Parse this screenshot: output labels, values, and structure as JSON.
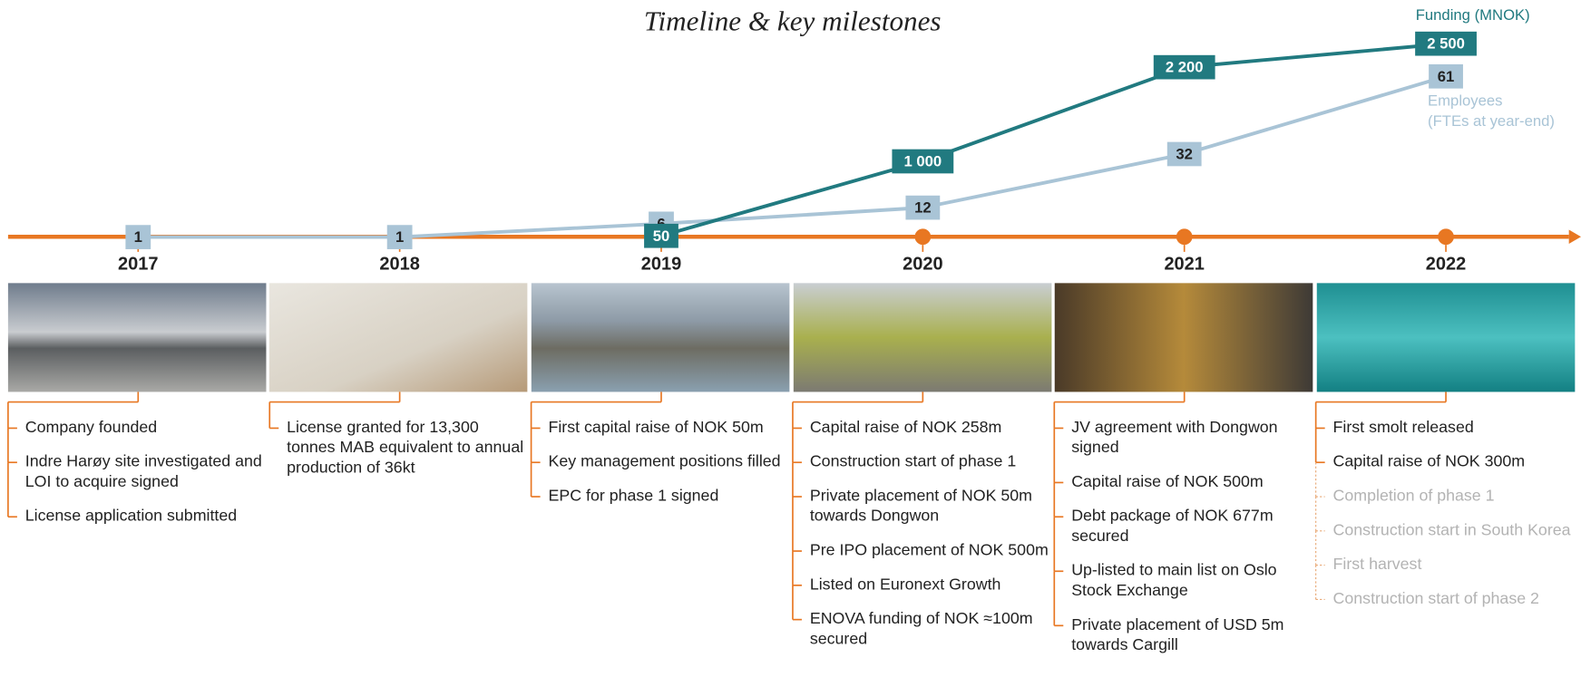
{
  "title": "Timeline & key milestones",
  "chart_data": {
    "type": "line",
    "categories": [
      "2017",
      "2018",
      "2019",
      "2020",
      "2021",
      "2022"
    ],
    "ylim": [
      0,
      2800
    ],
    "y2lim": [
      0,
      82
    ],
    "series": [
      {
        "name": "Funding (MNOK)",
        "color": "#217a80",
        "values": [
          null,
          null,
          50,
          1000,
          2200,
          2500
        ],
        "value_labels": [
          null,
          null,
          "50",
          "1 000",
          "2 200",
          "2 500"
        ]
      },
      {
        "name": "Employees\n(FTEs at year-end)",
        "color": "#a9c4d6",
        "axis": "y2",
        "values": [
          1,
          1,
          6,
          12,
          32,
          61
        ]
      }
    ]
  },
  "milestones": [
    [
      {
        "text": "Company founded"
      },
      {
        "text": "Indre Harøy site investigated and LOI to acquire signed"
      },
      {
        "text": "License application submitted"
      }
    ],
    [
      {
        "text": "License granted for 13,300 tonnes MAB equivalent to annual production of 36kt"
      }
    ],
    [
      {
        "text": "First capital raise of NOK 50m"
      },
      {
        "text": "Key management positions filled"
      },
      {
        "text": "EPC for phase 1 signed"
      }
    ],
    [
      {
        "text": "Capital raise of NOK 258m"
      },
      {
        "text": "Construction start of phase 1"
      },
      {
        "text": "Private placement of NOK 50m towards Dongwon"
      },
      {
        "text": "Pre IPO placement of NOK 500m"
      },
      {
        "text": "Listed on Euronext Growth"
      },
      {
        "text": "ENOVA funding of NOK ≈100m secured"
      }
    ],
    [
      {
        "text": "JV agreement with Dongwon signed"
      },
      {
        "text": "Capital raise of NOK 500m"
      },
      {
        "text": "Debt package of NOK 677m secured"
      },
      {
        "text": "Up-listed to main list on Oslo Stock Exchange"
      },
      {
        "text": "Private placement of USD 5m towards Cargill"
      }
    ],
    [
      {
        "text": "First smolt released"
      },
      {
        "text": "Capital raise of NOK 300m"
      },
      {
        "text": "Completion of phase 1",
        "planned": true
      },
      {
        "text": "Construction start in South Korea",
        "planned": true
      },
      {
        "text": "First harvest",
        "planned": true
      },
      {
        "text": "Construction start of phase 2",
        "planned": true
      }
    ]
  ]
}
